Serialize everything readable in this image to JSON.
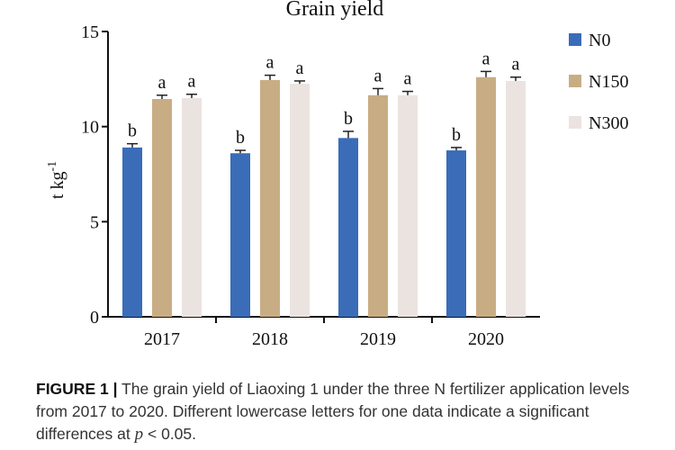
{
  "chart_data": {
    "type": "bar",
    "title": "Grain yield",
    "ylabel": "t kg",
    "ylabel_sup": "-1",
    "ylim": [
      0,
      15
    ],
    "yticks": [
      0,
      5,
      10,
      15
    ],
    "categories": [
      "2017",
      "2018",
      "2019",
      "2020"
    ],
    "series": [
      {
        "name": "N0",
        "color": "#3a6cb8",
        "values": [
          8.9,
          8.6,
          9.4,
          8.75
        ],
        "errors": [
          0.2,
          0.15,
          0.35,
          0.15
        ],
        "letters": [
          "b",
          "b",
          "b",
          "b"
        ]
      },
      {
        "name": "N150",
        "color": "#c8ad84",
        "values": [
          11.45,
          12.45,
          11.65,
          12.6
        ],
        "errors": [
          0.2,
          0.25,
          0.35,
          0.3
        ],
        "letters": [
          "a",
          "a",
          "a",
          "a"
        ]
      },
      {
        "name": "N300",
        "color": "#ebe3e0",
        "values": [
          11.5,
          12.25,
          11.65,
          12.4
        ],
        "errors": [
          0.2,
          0.15,
          0.2,
          0.2
        ],
        "letters": [
          "a",
          "a",
          "a",
          "a"
        ]
      }
    ],
    "legend_position": "top-right"
  },
  "caption": {
    "label": "FIGURE 1",
    "separator": "|",
    "text_1": "The grain yield of Liaoxing 1 under the three N fertilizer application levels from 2017 to 2020. Different lowercase letters for one data indicate a significant differences at",
    "p_symbol": "p",
    "text_2": "< 0.05."
  }
}
